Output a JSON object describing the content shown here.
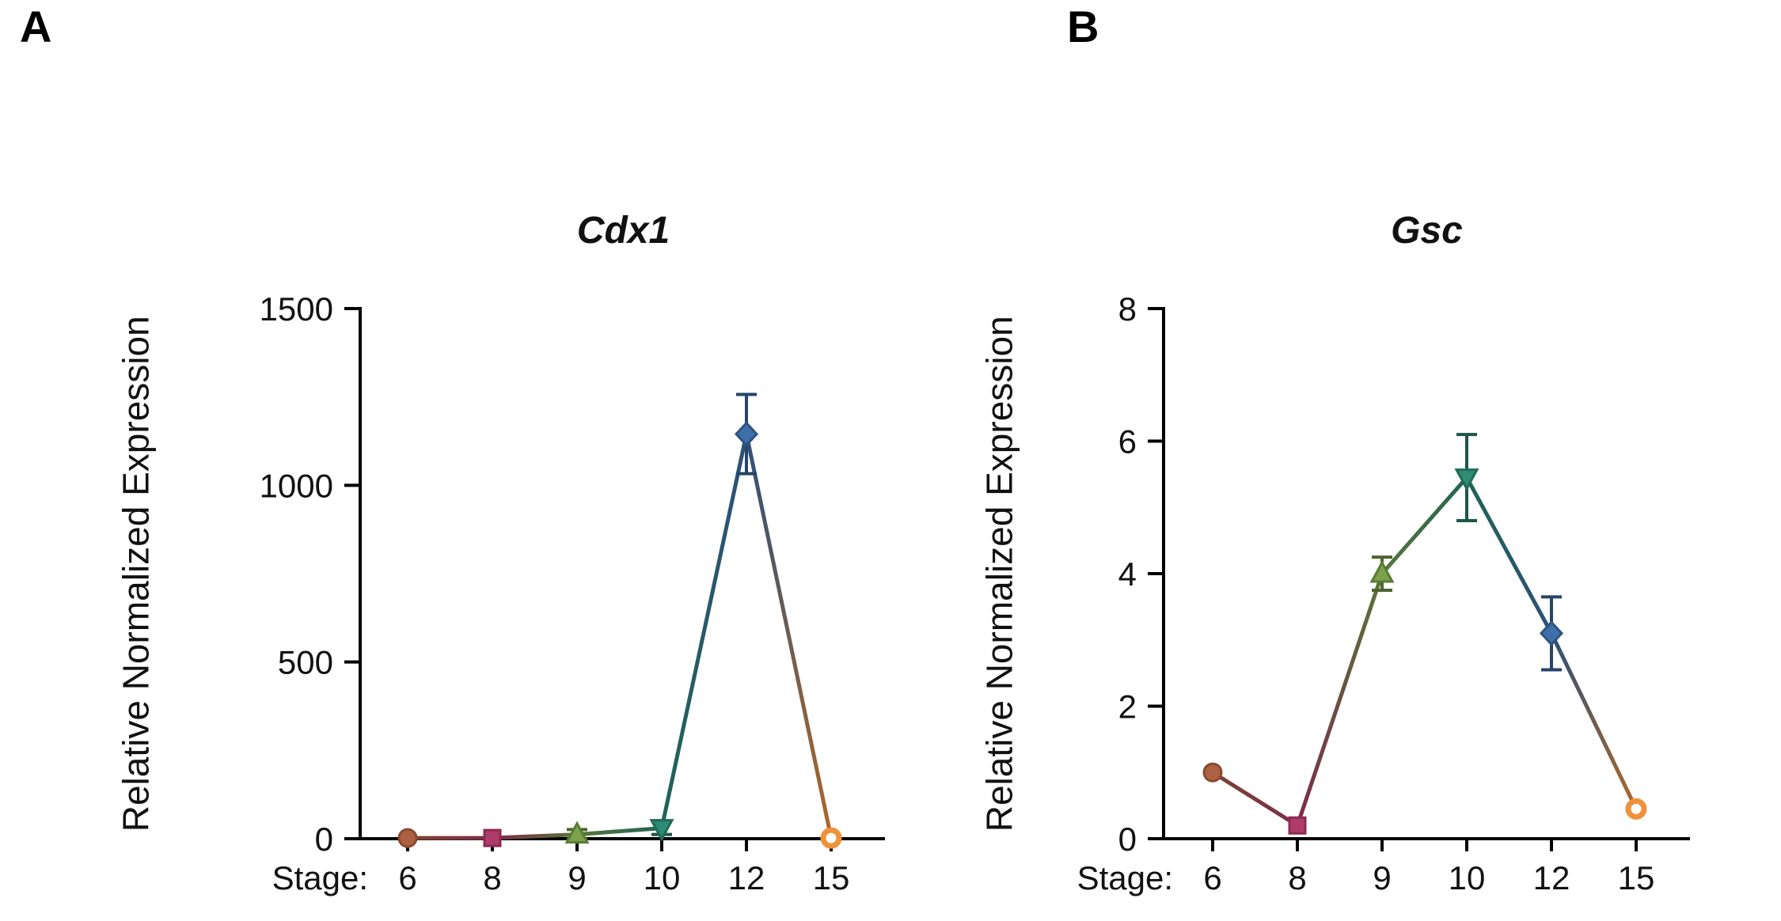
{
  "page": {
    "background": "#FFFFFF"
  },
  "panels": [
    {
      "letter": "A"
    },
    {
      "letter": "B"
    }
  ],
  "chart_data": [
    {
      "type": "line",
      "title": "Cdx1",
      "xlabel": "Stage:",
      "ylabel": "Relative Normalized Expression",
      "categories": [
        "6",
        "8",
        "9",
        "10",
        "12",
        "15"
      ],
      "values": [
        2,
        2,
        12,
        30,
        1145,
        2
      ],
      "errors": [
        0,
        0,
        14,
        18,
        112,
        0
      ],
      "ylim": [
        0,
        1500
      ],
      "yticks": [
        0,
        500,
        1000,
        1500
      ],
      "grid": false,
      "legend": "none",
      "markers": [
        {
          "stage": "6",
          "shape": "circle",
          "fill": "#AC6143",
          "edge": "#8A4A30"
        },
        {
          "stage": "8",
          "shape": "square",
          "fill": "#AE3B69",
          "edge": "#8C2A52"
        },
        {
          "stage": "9",
          "shape": "triangle-up",
          "fill": "#7CA24E",
          "edge": "#597D33"
        },
        {
          "stage": "10",
          "shape": "triangle-down",
          "fill": "#2E8B74",
          "edge": "#1F6B58"
        },
        {
          "stage": "12",
          "shape": "diamond",
          "fill": "#3E6FA8",
          "edge": "#2E5480"
        },
        {
          "stage": "15",
          "shape": "circle-open",
          "fill": "#FFFFFF",
          "edge": "#F0913B"
        }
      ]
    },
    {
      "type": "line",
      "title": "Gsc",
      "xlabel": "Stage:",
      "ylabel": "Relative Normalized Expression",
      "categories": [
        "6",
        "8",
        "9",
        "10",
        "12",
        "15"
      ],
      "values": [
        1.0,
        0.2,
        4.0,
        5.45,
        3.1,
        0.45
      ],
      "errors": [
        0,
        0,
        0.25,
        0.65,
        0.55,
        0
      ],
      "ylim": [
        0,
        8
      ],
      "yticks": [
        0,
        2,
        4,
        6,
        8
      ],
      "grid": false,
      "legend": "none",
      "markers": [
        {
          "stage": "6",
          "shape": "circle",
          "fill": "#AC6143",
          "edge": "#8A4A30"
        },
        {
          "stage": "8",
          "shape": "square",
          "fill": "#AE3B69",
          "edge": "#8C2A52"
        },
        {
          "stage": "9",
          "shape": "triangle-up",
          "fill": "#7CA24E",
          "edge": "#597D33"
        },
        {
          "stage": "10",
          "shape": "triangle-down",
          "fill": "#2E8B74",
          "edge": "#1F6B58"
        },
        {
          "stage": "12",
          "shape": "diamond",
          "fill": "#3E6FA8",
          "edge": "#2E5480"
        },
        {
          "stage": "15",
          "shape": "circle-open",
          "fill": "#FFFFFF",
          "edge": "#F0913B"
        }
      ]
    }
  ]
}
